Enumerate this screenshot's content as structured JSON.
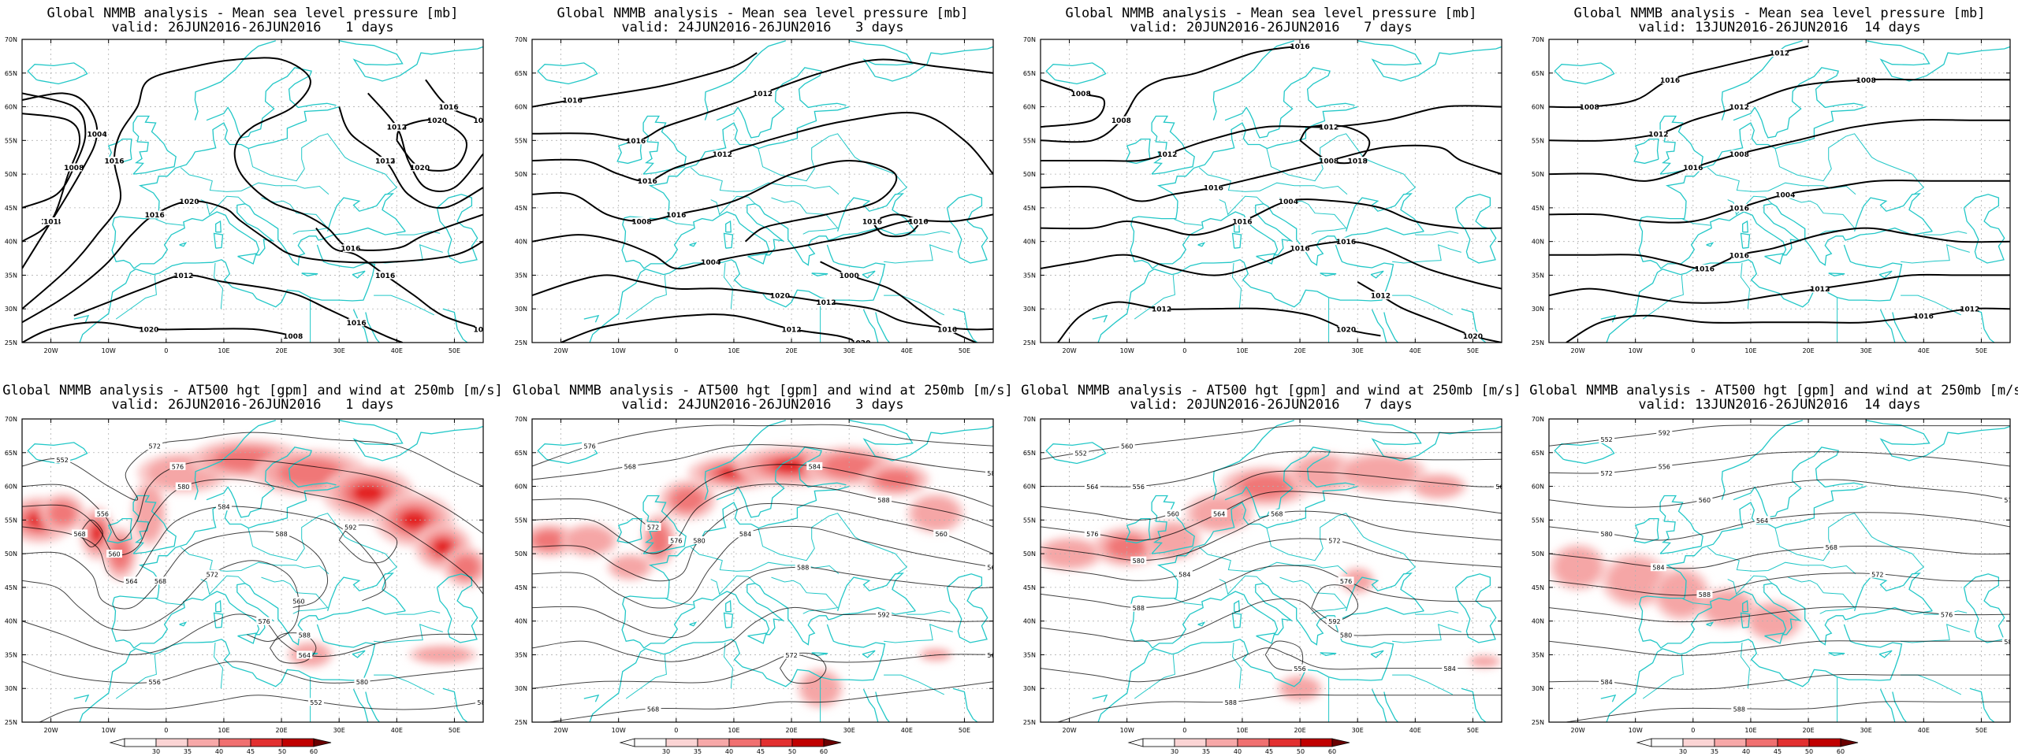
{
  "colors": {
    "coast": "#22c7c7",
    "contour": "#000000",
    "jet_light": "#f9c4c4",
    "jet_mid": "#f07070",
    "jet_dark": "#e01010",
    "jet_darkest": "#6a0000",
    "grid": "#b0b0b0"
  },
  "map": {
    "lat_labels": [
      "70N",
      "65N",
      "60N",
      "55N",
      "50N",
      "45N",
      "40N",
      "35N",
      "30N",
      "25N"
    ],
    "lon_labels": [
      "20W",
      "10W",
      "0",
      "10E",
      "20E",
      "30E",
      "40E",
      "50E"
    ]
  },
  "panels": {
    "mslp": [
      {
        "title": "Global NMMB analysis - Mean sea level pressure [mb]",
        "valid": "valid: 26JUN2016-26JUN2016   1 days",
        "contour_labels": [
          "1004",
          "1008",
          "1012",
          "1016",
          "1016",
          "1016",
          "1016",
          "1016",
          "1020",
          "1020",
          "1016",
          "1012",
          "1012",
          "1008",
          "1004",
          "1016",
          "1020",
          "1012",
          "1012",
          "1012",
          "1008",
          "1020",
          "1016",
          "1016",
          "101"
        ]
      },
      {
        "title": "Global NMMB analysis - Mean sea level pressure [mb]",
        "valid": "valid: 24JUN2016-26JUN2016   3 days",
        "contour_labels": [
          "1016",
          "1016",
          "1016",
          "1016",
          "1020",
          "1020",
          "1020",
          "1016",
          "1016",
          "1016",
          "1012",
          "1012",
          "1008",
          "1004",
          "1012",
          "1012",
          "1016",
          "1000"
        ]
      },
      {
        "title": "Global NMMB analysis - Mean sea level pressure [mb]",
        "valid": "valid: 20JUN2016-26JUN2016   7 days",
        "contour_labels": [
          "1004",
          "1008",
          "1012",
          "1016",
          "1016",
          "1016",
          "1020",
          "1020",
          "1020",
          "1016",
          "1016",
          "1012",
          "1008",
          "1004",
          "1016",
          "1012",
          "1018",
          "1012",
          "1008"
        ]
      },
      {
        "title": "Global NMMB analysis - Mean sea level pressure [mb]",
        "valid": "valid: 13JUN2016-26JUN2016  14 days",
        "contour_labels": [
          "1008",
          "1012",
          "1016",
          "1016",
          "1016",
          "1016",
          "1016",
          "1012",
          "1012",
          "1008",
          "1004",
          "1016",
          "1012",
          "1012",
          "1016",
          "1008"
        ]
      }
    ],
    "z500": [
      {
        "title": "Global NMMB analysis - AT500 hgt [gpm] and wind at 250mb [m/s]",
        "valid": "valid: 26JUN2016-26JUN2016   1 days",
        "contour_labels": [
          "552",
          "556",
          "560",
          "564",
          "568",
          "572",
          "576",
          "580",
          "584",
          "588",
          "592",
          "568",
          "572",
          "576",
          "580",
          "584",
          "588",
          "560",
          "564",
          "556",
          "552"
        ]
      },
      {
        "title": "Global NMMB analysis - AT500 hgt [gpm] and wind at 250mb [m/s]",
        "valid": "valid: 24JUN2016-26JUN2016   3 days",
        "contour_labels": [
          "564",
          "568",
          "572",
          "576",
          "580",
          "584",
          "588",
          "592",
          "564",
          "568",
          "572",
          "576",
          "580",
          "584",
          "588",
          "560",
          "564"
        ]
      },
      {
        "title": "Global NMMB analysis - AT500 hgt [gpm] and wind at 250mb [m/s]",
        "valid": "valid: 20JUN2016-26JUN2016   7 days",
        "contour_labels": [
          "552",
          "556",
          "560",
          "564",
          "568",
          "572",
          "576",
          "580",
          "584",
          "588",
          "592",
          "556",
          "560",
          "564",
          "568",
          "576",
          "580",
          "584",
          "588"
        ]
      },
      {
        "title": "Global NMMB analysis - AT500 hgt [gpm] and wind at 250mb [m/s]",
        "valid": "valid: 13JUN2016-26JUN2016  14 days",
        "contour_labels": [
          "552",
          "556",
          "560",
          "564",
          "568",
          "572",
          "576",
          "580",
          "584",
          "588",
          "592",
          "572",
          "576",
          "580",
          "584",
          "588"
        ]
      }
    ]
  },
  "colorbar": {
    "ticks": [
      "30",
      "35",
      "40",
      "45",
      "50",
      "60"
    ]
  }
}
